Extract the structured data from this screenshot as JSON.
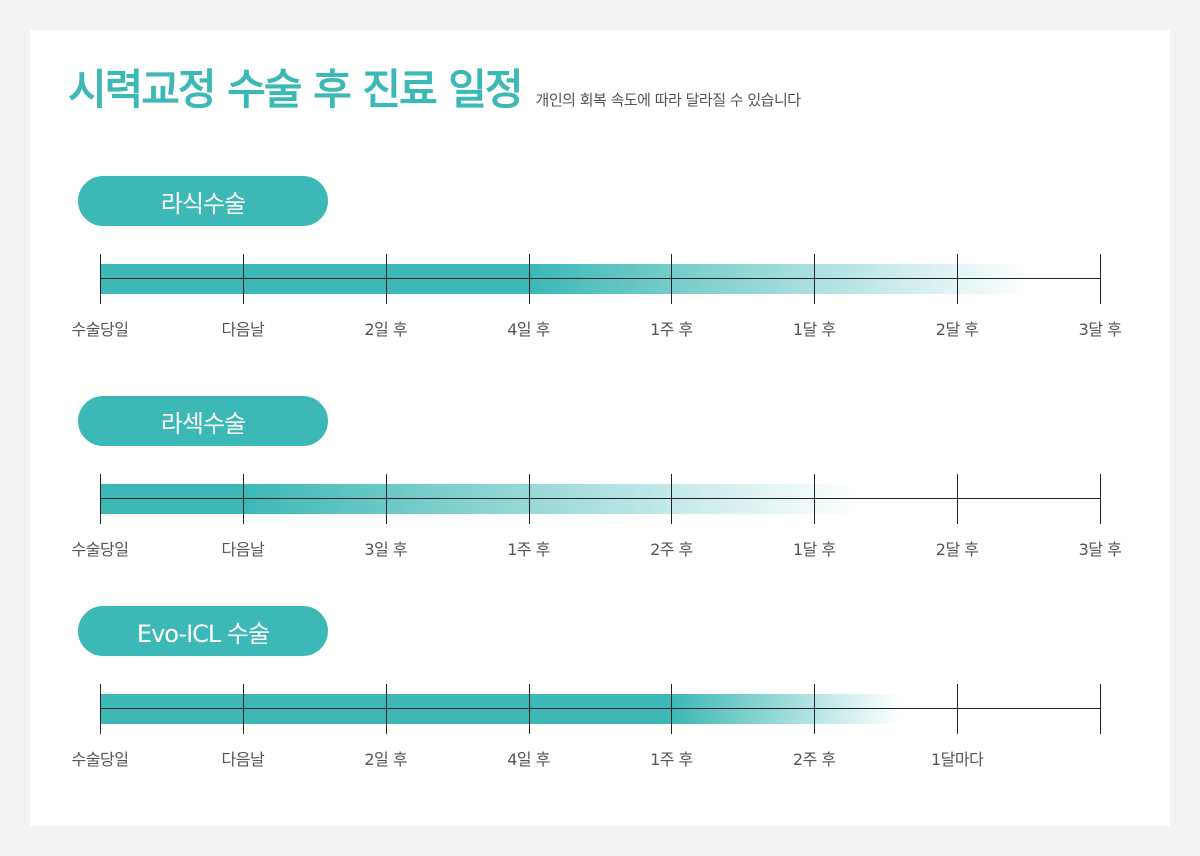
{
  "header": {
    "title": "시력교정 수술 후 진료 일정",
    "subtitle": "개인의 회복 속도에 따라 달라질 수 있습니다"
  },
  "colors": {
    "accent": "#3cb8b6",
    "axis": "#222222",
    "text": "#555555"
  },
  "sections": [
    {
      "name": "라식수술",
      "labels": [
        "수술당일",
        "다음날",
        "2일 후",
        "4일 후",
        "1주 후",
        "1달 후",
        "2달 후",
        "3달 후"
      ],
      "solid_until_tick": 3,
      "fade_end_tick": 6.5
    },
    {
      "name": "라섹수술",
      "labels": [
        "수술당일",
        "다음날",
        "3일 후",
        "1주 후",
        "2주 후",
        "1달 후",
        "2달 후",
        "3달 후"
      ],
      "solid_until_tick": 1,
      "fade_end_tick": 5.3
    },
    {
      "name": "Evo-ICL 수술",
      "labels": [
        "수술당일",
        "다음날",
        "2일 후",
        "4일 후",
        "1주 후",
        "2주 후",
        "1달마다",
        ""
      ],
      "solid_until_tick": 4,
      "fade_end_tick": 5.6
    }
  ]
}
